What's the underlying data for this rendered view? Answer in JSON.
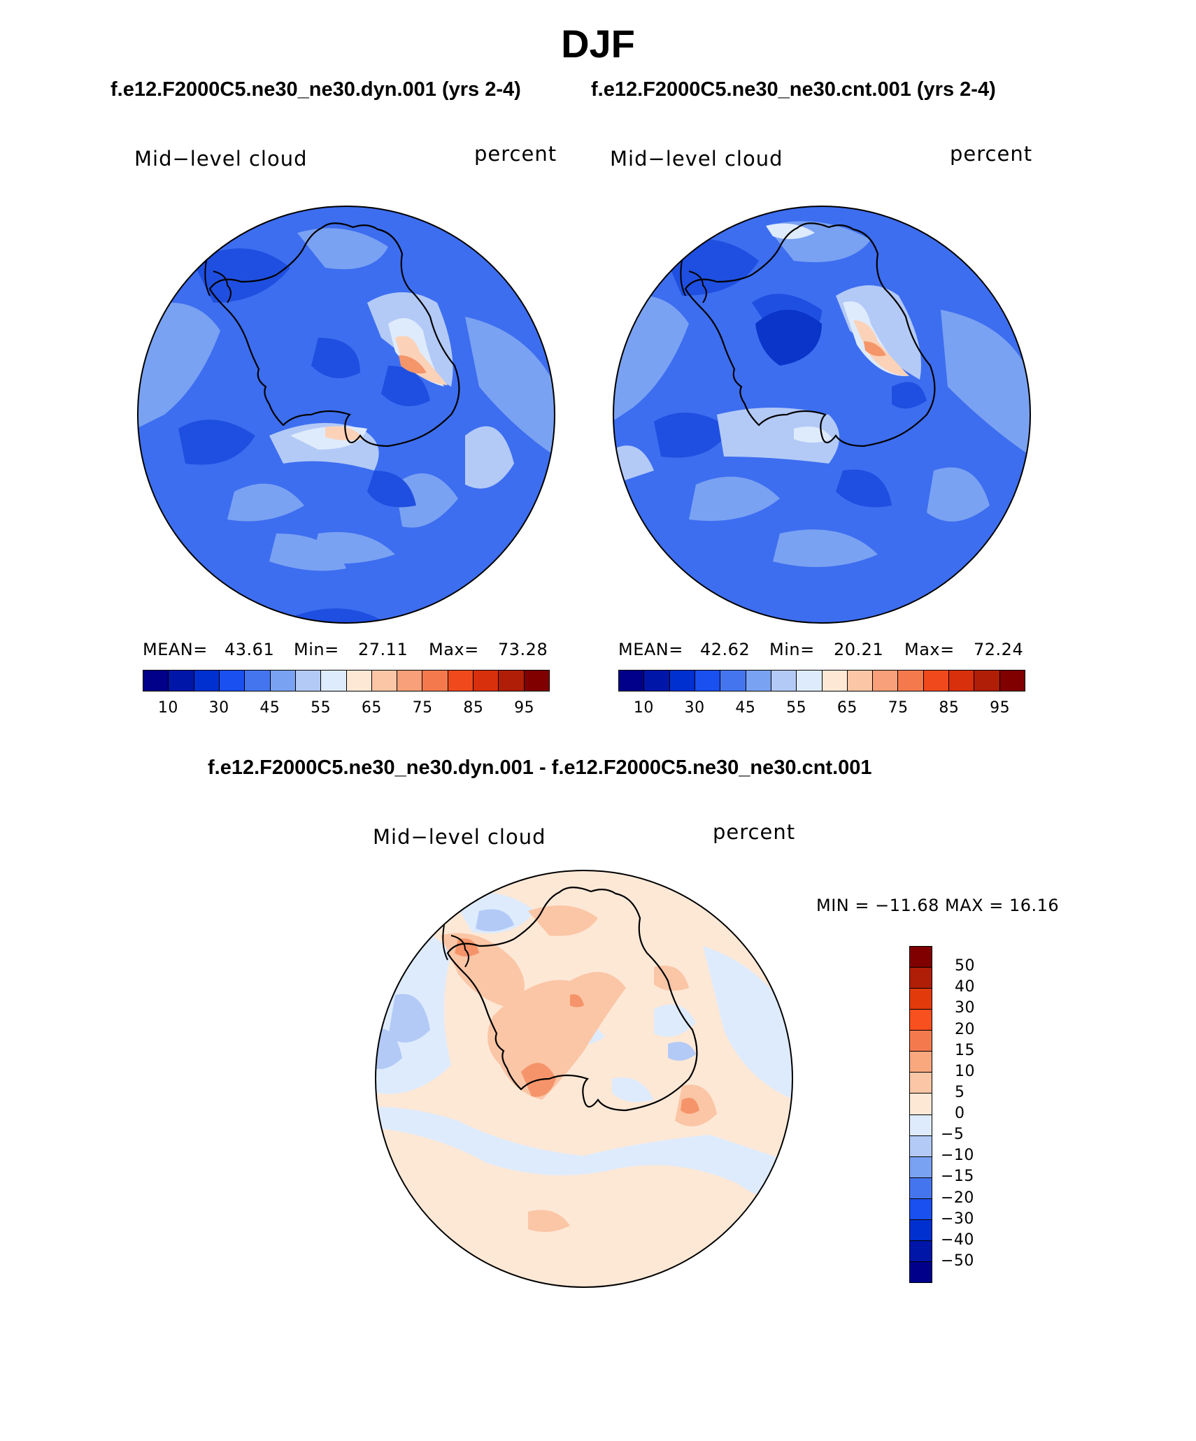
{
  "page": {
    "title": "DJF",
    "case_header_left": "f.e12.F2000C5.ne30_ne30.dyn.001 (yrs 2-4)",
    "case_header_right": "f.e12.F2000C5.ne30_ne30.cnt.001 (yrs 2-4)",
    "diff_header": "f.e12.F2000C5.ne30_ne30.dyn.001 - f.e12.F2000C5.ne30_ne30.cnt.001"
  },
  "panels": [
    {
      "variable": "Mid−level cloud",
      "units": "percent",
      "mean_label": "MEAN=",
      "mean": "43.61",
      "min_label": "Min=",
      "min": "27.11",
      "max_label": "Max=",
      "max": "73.28"
    },
    {
      "variable": "Mid−level cloud",
      "units": "percent",
      "mean_label": "MEAN=",
      "mean": "42.62",
      "min_label": "Min=",
      "min": "20.21",
      "max_label": "Max=",
      "max": "72.24"
    },
    {
      "variable": "Mid−level cloud",
      "units": "percent",
      "minmax": "MIN = −11.68 MAX =   16.16"
    }
  ],
  "colorbar_abs": {
    "colors": [
      "#00008b",
      "#0016a8",
      "#0030d0",
      "#1a4ff0",
      "#4575ee",
      "#7aa2f2",
      "#b3caf7",
      "#deebfc",
      "#fde8d6",
      "#fbc6a6",
      "#f7a07a",
      "#f47a4e",
      "#f04a1c",
      "#d8300c",
      "#b01e08",
      "#800000"
    ],
    "tick_labels": [
      "10",
      "30",
      "45",
      "55",
      "65",
      "75",
      "85",
      "95"
    ]
  },
  "colorbar_diff": {
    "colors": [
      "#800000",
      "#b01e08",
      "#e33a0b",
      "#f8501e",
      "#f47a4e",
      "#f9a87e",
      "#fbc6a6",
      "#fde8d6",
      "#deebfc",
      "#b3caf7",
      "#7aa2f2",
      "#4575ee",
      "#1a4ff0",
      "#0030d0",
      "#0016a8",
      "#00008b"
    ],
    "tick_labels": [
      "50",
      "40",
      "30",
      "20",
      "15",
      "10",
      "5",
      "0",
      "−5",
      "−10",
      "−15",
      "−20",
      "−30",
      "−40",
      "−50"
    ]
  },
  "map_colors": {
    "abs_base": "#3d6ef0",
    "abs_dark": "#1f4fe0",
    "abs_darker": "#0a35c8",
    "abs_light": "#7aa2f2",
    "abs_lighter": "#b3caf7",
    "abs_white": "#deebfc",
    "abs_peach": "#fbd2b8",
    "abs_orange": "#f4956a",
    "diff_base": "#fde8d6",
    "diff_blue": "#deebfc",
    "diff_blue2": "#b3caf7",
    "diff_orange": "#fbc6a6",
    "diff_orange2": "#f5946a",
    "coast": "#000000"
  }
}
